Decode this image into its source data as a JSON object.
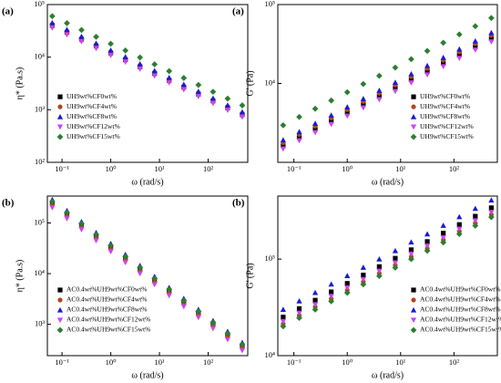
{
  "chart_data": [
    {
      "type": "scatter",
      "panel_label": "(a)",
      "xlabel": "ω (rad/s)",
      "ylabel": "η* (Pa.s)",
      "xscale": "log",
      "yscale": "log",
      "legend": "lower left",
      "xlim": [
        0.05,
        650
      ],
      "ylim": [
        100,
        100000
      ],
      "xticks": [
        {
          "value": 0.1,
          "label": "10⁻¹"
        },
        {
          "value": 1,
          "label": "10⁰"
        },
        {
          "value": 10,
          "label": "10¹"
        },
        {
          "value": 100,
          "label": "10²"
        }
      ],
      "yticks": [
        {
          "value": 100,
          "label": "10²"
        },
        {
          "value": 1000,
          "label": "10³"
        },
        {
          "value": 10000,
          "label": "10⁴"
        },
        {
          "value": 100000,
          "label": "10⁵"
        }
      ],
      "x": [
        0.063,
        0.126,
        0.251,
        0.501,
        1,
        2,
        3.98,
        7.94,
        15.8,
        31.6,
        63.1,
        126,
        251,
        501
      ],
      "series": [
        {
          "name": "UH9wt%CF0wt%",
          "color": "#000000",
          "marker": "square",
          "values": [
            40000,
            29600,
            21900,
            16300,
            12000,
            8930,
            6590,
            4890,
            3610,
            2680,
            1980,
            1470,
            1090,
            807
          ]
        },
        {
          "name": "UH9wt%CF4wt%",
          "color": "#b5451b",
          "marker": "circle",
          "values": [
            42000,
            31100,
            23000,
            17100,
            12600,
            9380,
            6920,
            5130,
            3790,
            2810,
            2080,
            1540,
            1140,
            847
          ]
        },
        {
          "name": "UH9wt%CF8wt%",
          "color": "#1a1ad6",
          "marker": "triangle-up",
          "values": [
            45000,
            33300,
            24700,
            18300,
            13500,
            10100,
            7420,
            5500,
            4070,
            3020,
            2230,
            1650,
            1220,
            908
          ]
        },
        {
          "name": "UH9wt%CF12wt%",
          "color": "#cc44ee",
          "marker": "triangle-down",
          "values": [
            36000,
            26600,
            19700,
            14600,
            10800,
            8040,
            5930,
            4400,
            3250,
            2410,
            1780,
            1320,
            978,
            726
          ]
        },
        {
          "name": "UH9wt%CF15wt%",
          "color": "#2e7d32",
          "marker": "diamond",
          "values": [
            60000,
            44400,
            32900,
            24400,
            18000,
            13400,
            9890,
            7330,
            5420,
            4020,
            2970,
            2200,
            1630,
            1210
          ]
        }
      ]
    },
    {
      "type": "scatter",
      "panel_label": "(a)",
      "xlabel": "ω (rad/s)",
      "ylabel": "G' (Pa)",
      "xscale": "log",
      "yscale": "log",
      "legend": "lower right",
      "xlim": [
        0.05,
        650
      ],
      "ylim": [
        1000,
        100000
      ],
      "xticks": [
        {
          "value": 0.1,
          "label": "10⁻¹"
        },
        {
          "value": 1,
          "label": "10⁰"
        },
        {
          "value": 10,
          "label": "10¹"
        },
        {
          "value": 100,
          "label": "10²"
        }
      ],
      "yticks": [
        {
          "value": 10000,
          "label": "10⁴"
        },
        {
          "value": 100000,
          "label": "10⁵"
        }
      ],
      "x": [
        0.063,
        0.126,
        0.251,
        0.501,
        1,
        2,
        3.98,
        7.94,
        15.8,
        31.6,
        63.1,
        126,
        251,
        501
      ],
      "series": [
        {
          "name": "UH9wt%CF0wt%",
          "color": "#000000",
          "marker": "square",
          "values": [
            1620,
            2070,
            2630,
            3340,
            4250,
            5410,
            6880,
            8750,
            11200,
            14200,
            18000,
            23000,
            29200,
            37200
          ]
        },
        {
          "name": "UH9wt%CF4wt%",
          "color": "#b5451b",
          "marker": "circle",
          "values": [
            1770,
            2260,
            2870,
            3650,
            4640,
            5900,
            7500,
            9540,
            12200,
            15500,
            19700,
            25100,
            31900,
            40600
          ]
        },
        {
          "name": "UH9wt%CF8wt%",
          "color": "#1a1ad6",
          "marker": "triangle-up",
          "values": [
            1920,
            2440,
            3110,
            3950,
            5020,
            6400,
            8130,
            10300,
            13200,
            16800,
            21300,
            27200,
            34500,
            43900
          ]
        },
        {
          "name": "UH9wt%CF12wt%",
          "color": "#cc44ee",
          "marker": "triangle-down",
          "values": [
            1480,
            1880,
            2390,
            3040,
            3870,
            4920,
            6250,
            7950,
            10200,
            12900,
            16400,
            20900,
            26600,
            33800
          ]
        },
        {
          "name": "UH9wt%CF15wt%",
          "color": "#2e7d32",
          "marker": "diamond",
          "values": [
            2950,
            3760,
            4780,
            6080,
            7730,
            9840,
            12500,
            15900,
            20300,
            25800,
            32800,
            41800,
            53100,
            67600
          ]
        }
      ]
    },
    {
      "type": "scatter",
      "panel_label": "(b)",
      "xlabel": "ω (rad/s)",
      "ylabel": "η* (Pa.s)",
      "xscale": "log",
      "yscale": "log",
      "legend": "lower left",
      "xlim": [
        0.05,
        650
      ],
      "ylim": [
        240,
        340000
      ],
      "xticks": [
        {
          "value": 0.1,
          "label": "10⁻¹"
        },
        {
          "value": 1,
          "label": "10⁰"
        },
        {
          "value": 10,
          "label": "10¹"
        },
        {
          "value": 100,
          "label": "10²"
        }
      ],
      "yticks": [
        {
          "value": 1000,
          "label": "10³"
        },
        {
          "value": 10000,
          "label": "10⁴"
        },
        {
          "value": 100000,
          "label": "10⁵"
        }
      ],
      "x": [
        0.063,
        0.126,
        0.251,
        0.501,
        1,
        2,
        3.98,
        7.94,
        15.8,
        31.6,
        63.1,
        126,
        251,
        501
      ],
      "series": [
        {
          "name": "AC0.4wt%UH9wt%CF0wt%",
          "color": "#000000",
          "marker": "square",
          "values": [
            251000,
            152000,
            92500,
            56100,
            34000,
            20700,
            12500,
            7600,
            4610,
            2800,
            1700,
            1030,
            625,
            379
          ]
        },
        {
          "name": "AC0.4wt%UH9wt%CF4wt%",
          "color": "#b5451b",
          "marker": "circle",
          "values": [
            226000,
            137000,
            83300,
            50500,
            30600,
            18600,
            11300,
            6840,
            4150,
            2520,
            1530,
            927,
            563,
            341
          ]
        },
        {
          "name": "AC0.4wt%UH9wt%CF8wt%",
          "color": "#1a1ad6",
          "marker": "triangle-up",
          "values": [
            289000,
            175000,
            106000,
            64500,
            39100,
            23800,
            14400,
            8740,
            5300,
            3220,
            1960,
            1180,
            719,
            436
          ]
        },
        {
          "name": "AC0.4wt%UH9wt%CF12wt%",
          "color": "#cc44ee",
          "marker": "triangle-down",
          "values": [
            201000,
            122000,
            74000,
            44900,
            27200,
            16600,
            10000,
            6080,
            3690,
            2240,
            1360,
            824,
            500,
            303
          ]
        },
        {
          "name": "AC0.4wt%UH9wt%CF15wt%",
          "color": "#2e7d32",
          "marker": "diamond",
          "values": [
            264000,
            160000,
            97100,
            58900,
            35700,
            21700,
            13100,
            7980,
            4840,
            2940,
            1790,
            1080,
            656,
            398
          ]
        }
      ]
    },
    {
      "type": "scatter",
      "panel_label": "(b)",
      "xlabel": "ω (rad/s)",
      "ylabel": "G' (Pa)",
      "xscale": "log",
      "yscale": "log",
      "legend": "lower right",
      "xlim": [
        0.05,
        650
      ],
      "ylim": [
        10000,
        450000
      ],
      "xticks": [
        {
          "value": 0.1,
          "label": "10⁻¹"
        },
        {
          "value": 1,
          "label": "10⁰"
        },
        {
          "value": 10,
          "label": "10¹"
        },
        {
          "value": 100,
          "label": "10²"
        }
      ],
      "yticks": [
        {
          "value": 10000,
          "label": "10⁴"
        },
        {
          "value": 100000,
          "label": "10⁵"
        }
      ],
      "x": [
        0.063,
        0.126,
        0.251,
        0.501,
        1,
        2,
        3.98,
        7.94,
        15.8,
        31.6,
        63.1,
        126,
        251,
        501
      ],
      "series": [
        {
          "name": "AC0.4wt%UH9wt%CF0wt%",
          "color": "#000000",
          "marker": "square",
          "values": [
            25100,
            30700,
            37500,
            45800,
            56000,
            68400,
            83600,
            102000,
            125000,
            152000,
            186000,
            228000,
            278000,
            340000
          ]
        },
        {
          "name": "AC0.4wt%UH9wt%CF4wt%",
          "color": "#b5451b",
          "marker": "circle",
          "values": [
            21300,
            26100,
            31900,
            38900,
            47600,
            58100,
            71100,
            86700,
            106000,
            129000,
            158000,
            194000,
            236000,
            289000
          ]
        },
        {
          "name": "AC0.4wt%UH9wt%CF8wt%",
          "color": "#1a1ad6",
          "marker": "triangle-up",
          "values": [
            30100,
            36800,
            45000,
            55000,
            67200,
            82100,
            100000,
            122000,
            150000,
            182000,
            223000,
            274000,
            334000,
            408000
          ]
        },
        {
          "name": "AC0.4wt%UH9wt%CF12wt%",
          "color": "#cc44ee",
          "marker": "triangle-down",
          "values": [
            22600,
            27600,
            33800,
            41200,
            50400,
            61600,
            75200,
            91800,
            113000,
            137000,
            167000,
            205000,
            250000,
            306000
          ]
        },
        {
          "name": "AC0.4wt%UH9wt%CF15wt%",
          "color": "#2e7d32",
          "marker": "diamond",
          "values": [
            20100,
            24600,
            30000,
            36600,
            44800,
            54700,
            66900,
            81600,
            100000,
            122000,
            149000,
            182000,
            222000,
            272000
          ]
        }
      ]
    }
  ]
}
